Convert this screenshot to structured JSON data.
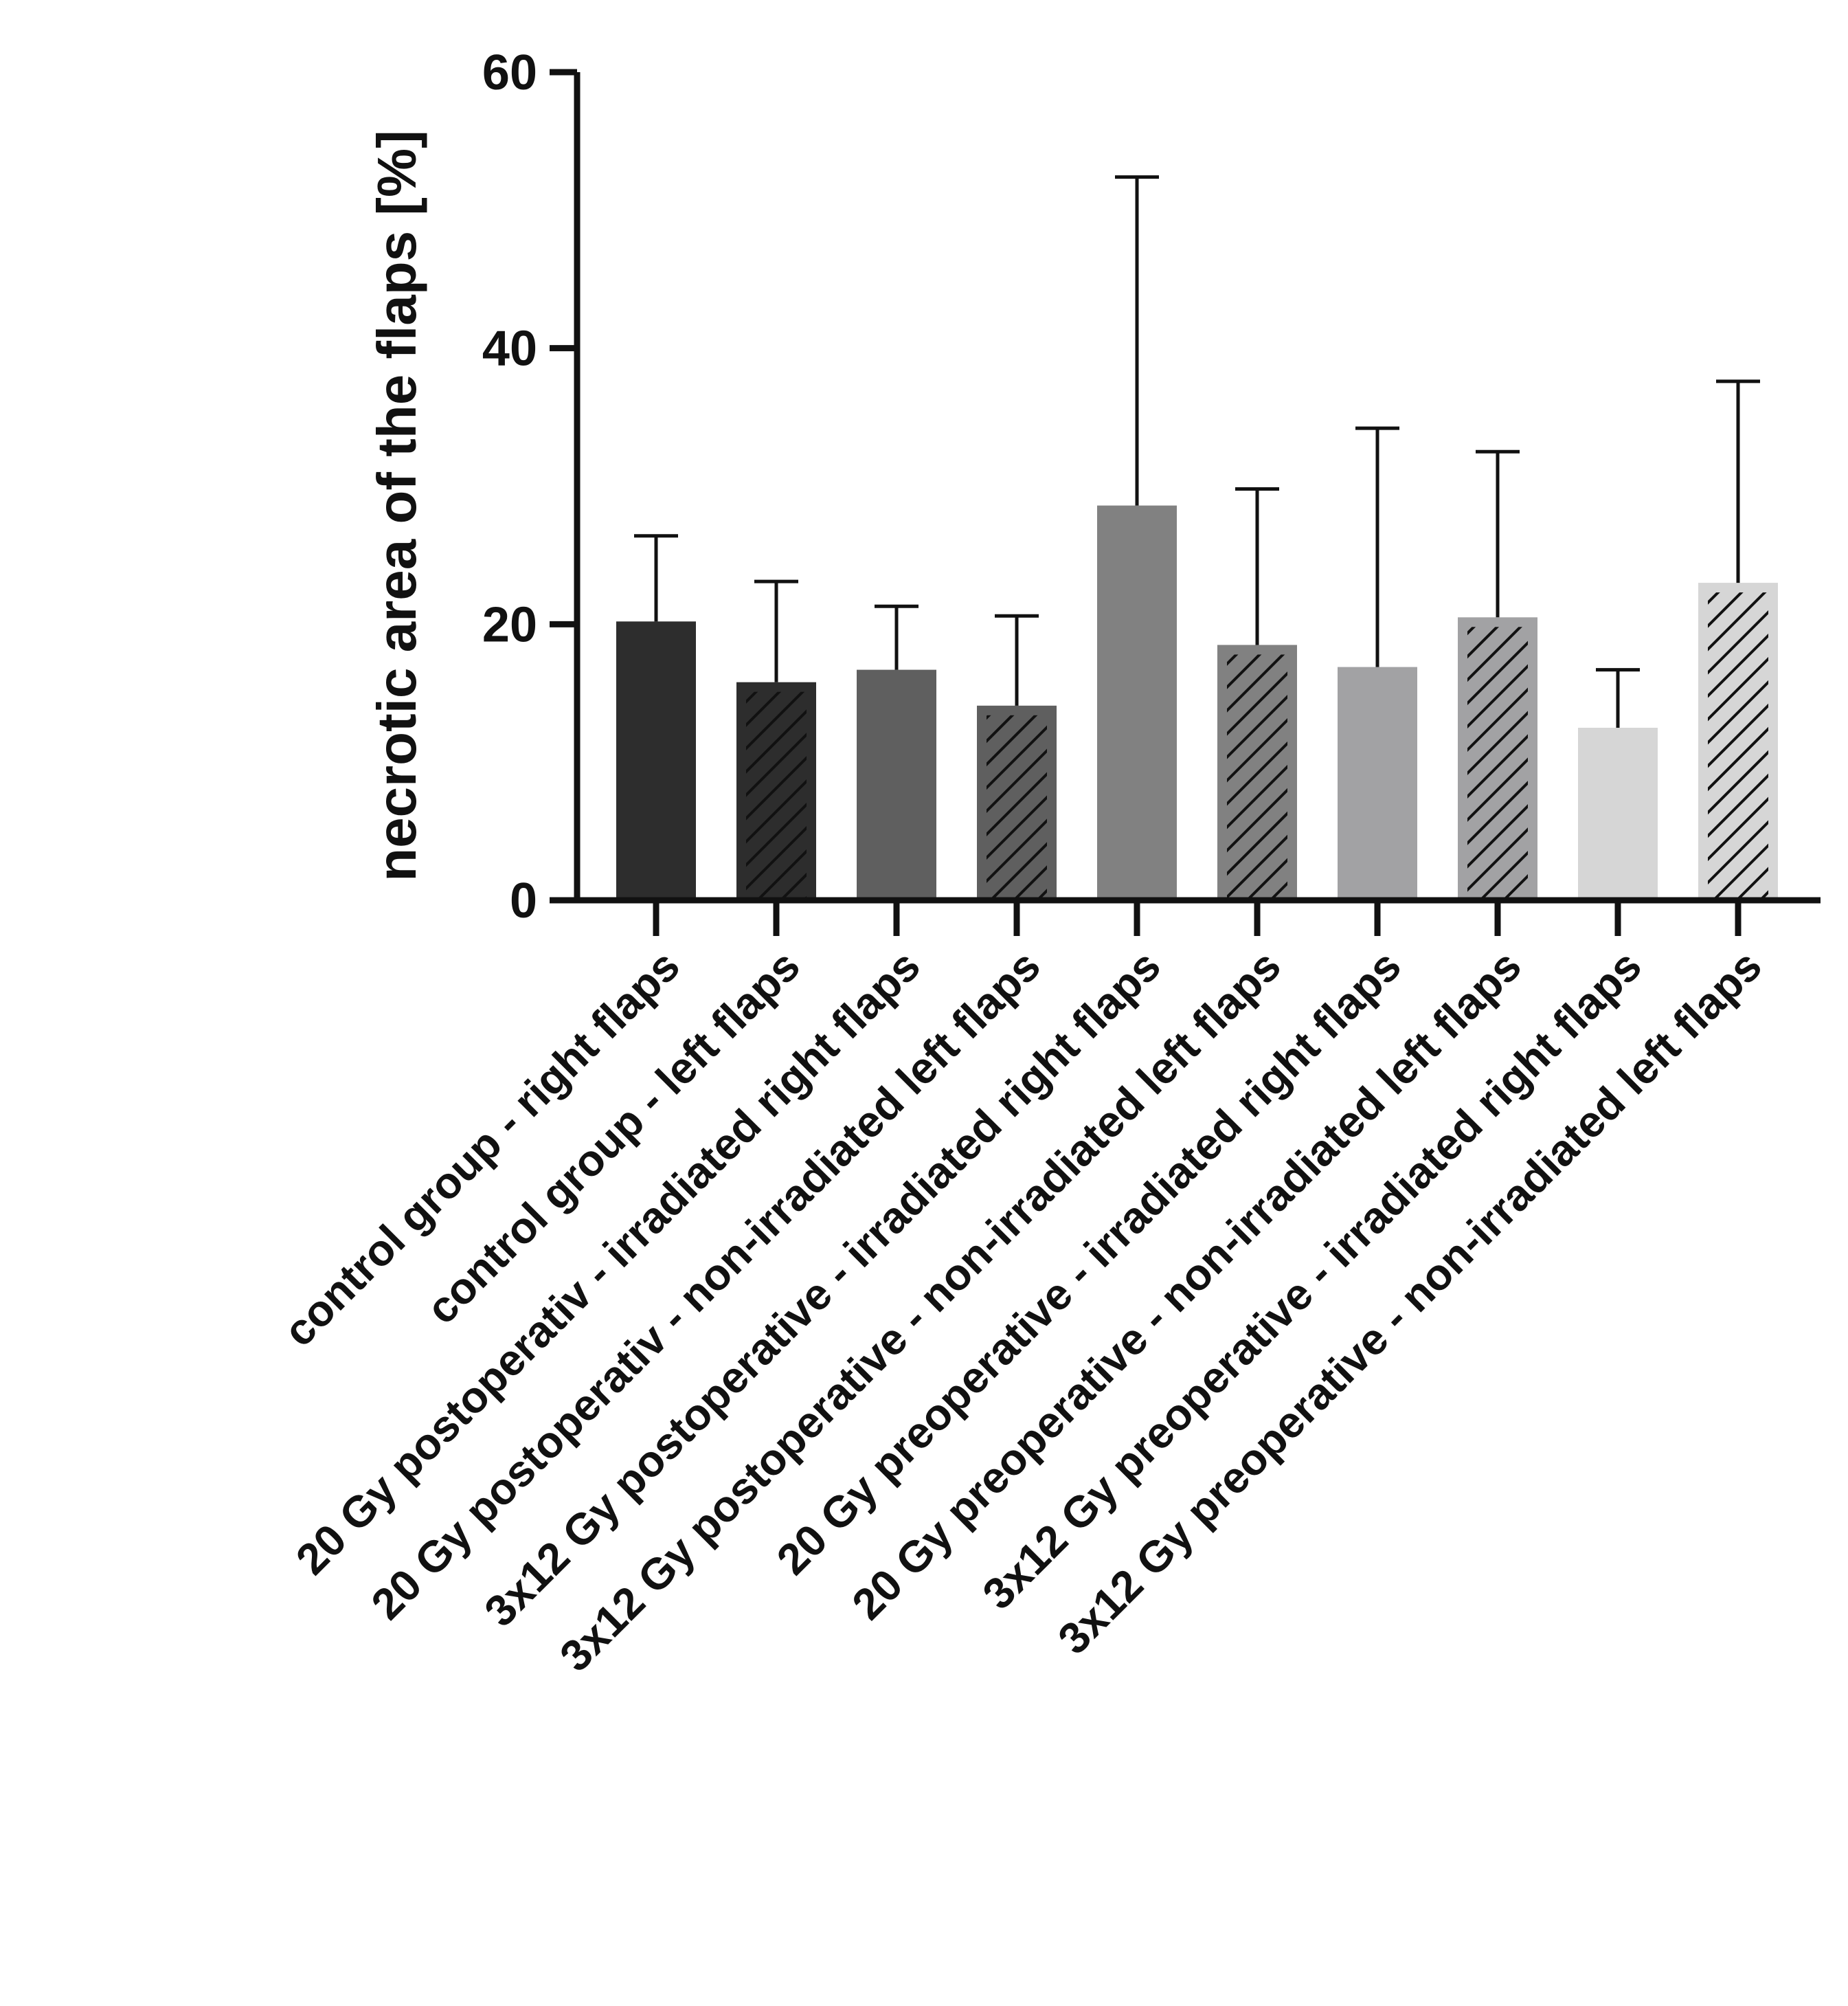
{
  "chart_data": {
    "type": "bar",
    "title": "",
    "xlabel": "",
    "ylabel": "necrotic area of the flaps [%]",
    "ylim": [
      0,
      60
    ],
    "yticks": [
      "0",
      "20",
      "40",
      "60"
    ],
    "grid": false,
    "legend": "none",
    "categories": [
      "control group - right flaps",
      "control group - left flaps",
      "20 Gy postoperativ - irradiated right flaps",
      "20 Gy postoperativ - non-irradiated left flaps",
      "3x12 Gy postoperative - irradiated right flaps",
      "3x12 Gy postoperative - non-irradiated left flaps",
      "20 Gy preoperative - irradiated right flaps",
      "20 Gy preoperative - non-irradiated left flaps",
      "3x12 Gy preoperative - irradiated right flaps",
      "3x12 Gy preoperative - non-irradiated left flaps"
    ],
    "values": [
      20.2,
      15.8,
      16.7,
      14.1,
      28.6,
      18.5,
      16.9,
      20.5,
      12.5,
      23.0
    ],
    "error_upper": [
      26.4,
      23.1,
      21.3,
      20.6,
      52.4,
      29.8,
      34.2,
      32.5,
      16.7,
      37.6
    ],
    "colors": [
      "#2d2d2d",
      "#2d2d2d",
      "#5f5f5f",
      "#5f5f5f",
      "#818181",
      "#818181",
      "#a2a2a4",
      "#a2a2a4",
      "#d6d6d6",
      "#d6d6d6"
    ],
    "hatched": [
      false,
      true,
      false,
      true,
      false,
      true,
      false,
      true,
      false,
      true
    ]
  }
}
